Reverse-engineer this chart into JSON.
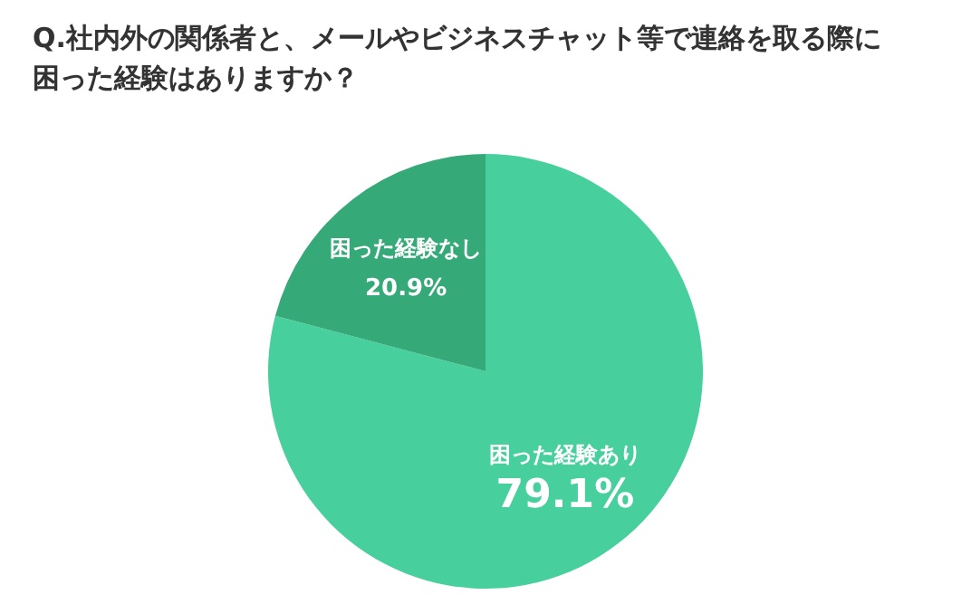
{
  "chart_data": {
    "type": "pie",
    "title": "Q.社内外の関係者と、メールやビジネスチャット等で連絡を取る際に困った経験はありますか？",
    "categories": [
      "困った経験あり",
      "困った経験なし"
    ],
    "values": [
      79.1,
      20.9
    ],
    "colors": [
      "#47cf9d",
      "#36a978"
    ],
    "value_labels": [
      "79.1%",
      "20.9%"
    ]
  }
}
